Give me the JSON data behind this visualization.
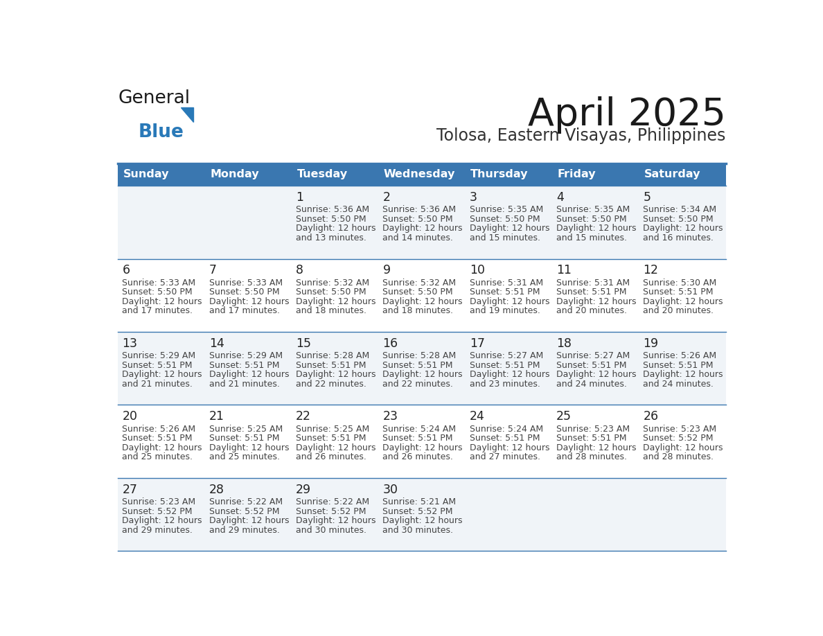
{
  "title": "April 2025",
  "subtitle": "Tolosa, Eastern Visayas, Philippines",
  "days_of_week": [
    "Sunday",
    "Monday",
    "Tuesday",
    "Wednesday",
    "Thursday",
    "Friday",
    "Saturday"
  ],
  "header_bg": "#3a77b0",
  "header_text": "#ffffff",
  "row_bg_odd": "#f0f4f8",
  "row_bg_even": "#ffffff",
  "cell_text_color": "#444444",
  "day_num_color": "#222222",
  "border_color": "#3a77b0",
  "title_color": "#1a1a1a",
  "subtitle_color": "#333333",
  "calendar": [
    [
      {
        "day": null,
        "sunrise": null,
        "sunset": null,
        "daylight_line1": null,
        "daylight_line2": null
      },
      {
        "day": null,
        "sunrise": null,
        "sunset": null,
        "daylight_line1": null,
        "daylight_line2": null
      },
      {
        "day": 1,
        "sunrise": "5:36 AM",
        "sunset": "5:50 PM",
        "daylight_line1": "Daylight: 12 hours",
        "daylight_line2": "and 13 minutes."
      },
      {
        "day": 2,
        "sunrise": "5:36 AM",
        "sunset": "5:50 PM",
        "daylight_line1": "Daylight: 12 hours",
        "daylight_line2": "and 14 minutes."
      },
      {
        "day": 3,
        "sunrise": "5:35 AM",
        "sunset": "5:50 PM",
        "daylight_line1": "Daylight: 12 hours",
        "daylight_line2": "and 15 minutes."
      },
      {
        "day": 4,
        "sunrise": "5:35 AM",
        "sunset": "5:50 PM",
        "daylight_line1": "Daylight: 12 hours",
        "daylight_line2": "and 15 minutes."
      },
      {
        "day": 5,
        "sunrise": "5:34 AM",
        "sunset": "5:50 PM",
        "daylight_line1": "Daylight: 12 hours",
        "daylight_line2": "and 16 minutes."
      }
    ],
    [
      {
        "day": 6,
        "sunrise": "5:33 AM",
        "sunset": "5:50 PM",
        "daylight_line1": "Daylight: 12 hours",
        "daylight_line2": "and 17 minutes."
      },
      {
        "day": 7,
        "sunrise": "5:33 AM",
        "sunset": "5:50 PM",
        "daylight_line1": "Daylight: 12 hours",
        "daylight_line2": "and 17 minutes."
      },
      {
        "day": 8,
        "sunrise": "5:32 AM",
        "sunset": "5:50 PM",
        "daylight_line1": "Daylight: 12 hours",
        "daylight_line2": "and 18 minutes."
      },
      {
        "day": 9,
        "sunrise": "5:32 AM",
        "sunset": "5:50 PM",
        "daylight_line1": "Daylight: 12 hours",
        "daylight_line2": "and 18 minutes."
      },
      {
        "day": 10,
        "sunrise": "5:31 AM",
        "sunset": "5:51 PM",
        "daylight_line1": "Daylight: 12 hours",
        "daylight_line2": "and 19 minutes."
      },
      {
        "day": 11,
        "sunrise": "5:31 AM",
        "sunset": "5:51 PM",
        "daylight_line1": "Daylight: 12 hours",
        "daylight_line2": "and 20 minutes."
      },
      {
        "day": 12,
        "sunrise": "5:30 AM",
        "sunset": "5:51 PM",
        "daylight_line1": "Daylight: 12 hours",
        "daylight_line2": "and 20 minutes."
      }
    ],
    [
      {
        "day": 13,
        "sunrise": "5:29 AM",
        "sunset": "5:51 PM",
        "daylight_line1": "Daylight: 12 hours",
        "daylight_line2": "and 21 minutes."
      },
      {
        "day": 14,
        "sunrise": "5:29 AM",
        "sunset": "5:51 PM",
        "daylight_line1": "Daylight: 12 hours",
        "daylight_line2": "and 21 minutes."
      },
      {
        "day": 15,
        "sunrise": "5:28 AM",
        "sunset": "5:51 PM",
        "daylight_line1": "Daylight: 12 hours",
        "daylight_line2": "and 22 minutes."
      },
      {
        "day": 16,
        "sunrise": "5:28 AM",
        "sunset": "5:51 PM",
        "daylight_line1": "Daylight: 12 hours",
        "daylight_line2": "and 22 minutes."
      },
      {
        "day": 17,
        "sunrise": "5:27 AM",
        "sunset": "5:51 PM",
        "daylight_line1": "Daylight: 12 hours",
        "daylight_line2": "and 23 minutes."
      },
      {
        "day": 18,
        "sunrise": "5:27 AM",
        "sunset": "5:51 PM",
        "daylight_line1": "Daylight: 12 hours",
        "daylight_line2": "and 24 minutes."
      },
      {
        "day": 19,
        "sunrise": "5:26 AM",
        "sunset": "5:51 PM",
        "daylight_line1": "Daylight: 12 hours",
        "daylight_line2": "and 24 minutes."
      }
    ],
    [
      {
        "day": 20,
        "sunrise": "5:26 AM",
        "sunset": "5:51 PM",
        "daylight_line1": "Daylight: 12 hours",
        "daylight_line2": "and 25 minutes."
      },
      {
        "day": 21,
        "sunrise": "5:25 AM",
        "sunset": "5:51 PM",
        "daylight_line1": "Daylight: 12 hours",
        "daylight_line2": "and 25 minutes."
      },
      {
        "day": 22,
        "sunrise": "5:25 AM",
        "sunset": "5:51 PM",
        "daylight_line1": "Daylight: 12 hours",
        "daylight_line2": "and 26 minutes."
      },
      {
        "day": 23,
        "sunrise": "5:24 AM",
        "sunset": "5:51 PM",
        "daylight_line1": "Daylight: 12 hours",
        "daylight_line2": "and 26 minutes."
      },
      {
        "day": 24,
        "sunrise": "5:24 AM",
        "sunset": "5:51 PM",
        "daylight_line1": "Daylight: 12 hours",
        "daylight_line2": "and 27 minutes."
      },
      {
        "day": 25,
        "sunrise": "5:23 AM",
        "sunset": "5:51 PM",
        "daylight_line1": "Daylight: 12 hours",
        "daylight_line2": "and 28 minutes."
      },
      {
        "day": 26,
        "sunrise": "5:23 AM",
        "sunset": "5:52 PM",
        "daylight_line1": "Daylight: 12 hours",
        "daylight_line2": "and 28 minutes."
      }
    ],
    [
      {
        "day": 27,
        "sunrise": "5:23 AM",
        "sunset": "5:52 PM",
        "daylight_line1": "Daylight: 12 hours",
        "daylight_line2": "and 29 minutes."
      },
      {
        "day": 28,
        "sunrise": "5:22 AM",
        "sunset": "5:52 PM",
        "daylight_line1": "Daylight: 12 hours",
        "daylight_line2": "and 29 minutes."
      },
      {
        "day": 29,
        "sunrise": "5:22 AM",
        "sunset": "5:52 PM",
        "daylight_line1": "Daylight: 12 hours",
        "daylight_line2": "and 30 minutes."
      },
      {
        "day": 30,
        "sunrise": "5:21 AM",
        "sunset": "5:52 PM",
        "daylight_line1": "Daylight: 12 hours",
        "daylight_line2": "and 30 minutes."
      },
      {
        "day": null,
        "sunrise": null,
        "sunset": null,
        "daylight_line1": null,
        "daylight_line2": null
      },
      {
        "day": null,
        "sunrise": null,
        "sunset": null,
        "daylight_line1": null,
        "daylight_line2": null
      },
      {
        "day": null,
        "sunrise": null,
        "sunset": null,
        "daylight_line1": null,
        "daylight_line2": null
      }
    ]
  ],
  "logo_general_color": "#1a1a1a",
  "logo_blue_color": "#2979b8",
  "logo_triangle_color": "#2979b8"
}
